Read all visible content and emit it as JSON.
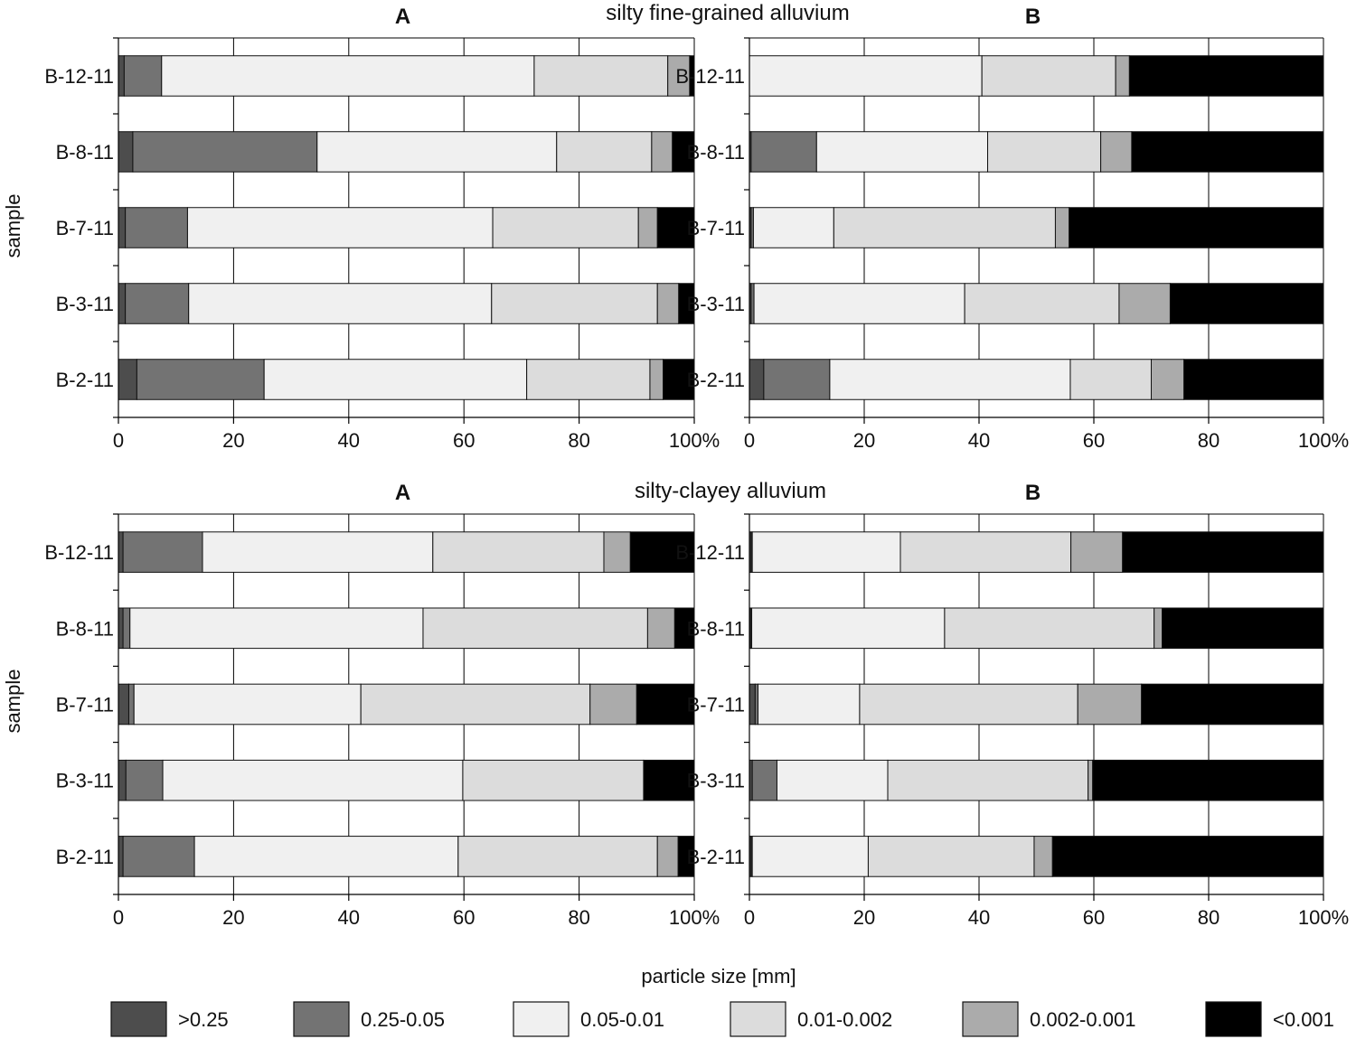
{
  "section_titles": [
    "silty fine-grained alluvium",
    "silty-clayey alluvium"
  ],
  "legend_title": "particle size [mm]",
  "y_axis_label": "sample",
  "x_ticks": [
    "0",
    "20",
    "40",
    "60",
    "80",
    "100%"
  ],
  "legend": [
    {
      "label": ">0.25",
      "color": "#4d4d4d"
    },
    {
      "label": "0.25-0.05",
      "color": "#737373"
    },
    {
      "label": "0.05-0.01",
      "color": "#f0f0f0"
    },
    {
      "label": "0.01-0.002",
      "color": "#dcdcdc"
    },
    {
      "label": "0.002-0.001",
      "color": "#ababab"
    },
    {
      "label": "<0.001",
      "color": "#000000"
    }
  ],
  "chart_data": [
    {
      "type": "bar",
      "stacked": true,
      "orientation": "horizontal",
      "section": "silty fine-grained alluvium",
      "panel": "A",
      "categories": [
        "B-12-11",
        "B-8-11",
        "B-7-11",
        "B-3-11",
        "B-2-11"
      ],
      "xlim": [
        0,
        100
      ],
      "series": [
        {
          "name": ">0.25",
          "values": [
            1.0,
            2.5,
            1.2,
            1.2,
            3.2
          ]
        },
        {
          "name": "0.25-0.05",
          "values": [
            6.5,
            32.0,
            10.8,
            11.0,
            22.1
          ]
        },
        {
          "name": "0.05-0.01",
          "values": [
            64.7,
            41.6,
            53.0,
            52.6,
            45.6
          ]
        },
        {
          "name": "0.01-0.002",
          "values": [
            23.2,
            16.5,
            25.3,
            28.8,
            21.4
          ]
        },
        {
          "name": "0.002-0.001",
          "values": [
            3.8,
            3.6,
            3.3,
            3.7,
            2.3
          ]
        },
        {
          "name": "<0.001",
          "values": [
            0.8,
            3.8,
            6.4,
            2.7,
            5.4
          ]
        }
      ]
    },
    {
      "type": "bar",
      "stacked": true,
      "orientation": "horizontal",
      "section": "silty fine-grained alluvium",
      "panel": "B",
      "categories": [
        "B-12-11",
        "B-8-11",
        "B-7-11",
        "B-3-11",
        "B-2-11"
      ],
      "xlim": [
        0,
        100
      ],
      "series": [
        {
          "name": ">0.25",
          "values": [
            0.0,
            0.3,
            0.3,
            0.3,
            2.5
          ]
        },
        {
          "name": "0.25-0.05",
          "values": [
            0.0,
            11.4,
            0.4,
            0.5,
            11.5
          ]
        },
        {
          "name": "0.05-0.01",
          "values": [
            40.5,
            29.8,
            14.0,
            36.7,
            41.9
          ]
        },
        {
          "name": "0.01-0.002",
          "values": [
            23.3,
            19.7,
            38.6,
            26.9,
            14.1
          ]
        },
        {
          "name": "0.002-0.001",
          "values": [
            2.4,
            5.4,
            2.4,
            8.9,
            5.7
          ]
        },
        {
          "name": "<0.001",
          "values": [
            33.8,
            33.4,
            44.3,
            26.7,
            24.3
          ]
        }
      ]
    },
    {
      "type": "bar",
      "stacked": true,
      "orientation": "horizontal",
      "section": "silty-clayey alluvium",
      "panel": "A",
      "categories": [
        "B-12-11",
        "B-8-11",
        "B-7-11",
        "B-3-11",
        "B-2-11"
      ],
      "xlim": [
        0,
        100
      ],
      "series": [
        {
          "name": ">0.25",
          "values": [
            0.8,
            0.8,
            1.8,
            1.3,
            0.8
          ]
        },
        {
          "name": "0.25-0.05",
          "values": [
            13.8,
            1.2,
            0.9,
            6.4,
            12.4
          ]
        },
        {
          "name": "0.05-0.01",
          "values": [
            40.0,
            50.9,
            39.4,
            52.1,
            45.8
          ]
        },
        {
          "name": "0.01-0.002",
          "values": [
            29.7,
            39.0,
            39.8,
            31.4,
            34.6
          ]
        },
        {
          "name": "0.002-0.001",
          "values": [
            4.6,
            4.7,
            8.1,
            0.0,
            3.6
          ]
        },
        {
          "name": "<0.001",
          "values": [
            11.1,
            3.4,
            10.0,
            8.8,
            2.8
          ]
        }
      ]
    },
    {
      "type": "bar",
      "stacked": true,
      "orientation": "horizontal",
      "section": "silty-clayey alluvium",
      "panel": "B",
      "categories": [
        "B-12-11",
        "B-8-11",
        "B-7-11",
        "B-3-11",
        "B-2-11"
      ],
      "xlim": [
        0,
        100
      ],
      "series": [
        {
          "name": ">0.25",
          "values": [
            0.3,
            0.2,
            1.0,
            0.5,
            0.3
          ]
        },
        {
          "name": "0.25-0.05",
          "values": [
            0.2,
            0.2,
            0.5,
            4.3,
            0.2
          ]
        },
        {
          "name": "0.05-0.01",
          "values": [
            25.8,
            33.6,
            17.7,
            19.3,
            20.2
          ]
        },
        {
          "name": "0.01-0.002",
          "values": [
            29.7,
            36.5,
            38.0,
            34.9,
            28.9
          ]
        },
        {
          "name": "0.002-0.001",
          "values": [
            9.0,
            1.4,
            11.1,
            0.8,
            3.2
          ]
        },
        {
          "name": "<0.001",
          "values": [
            35.0,
            28.1,
            31.7,
            40.2,
            47.2
          ]
        }
      ]
    }
  ]
}
